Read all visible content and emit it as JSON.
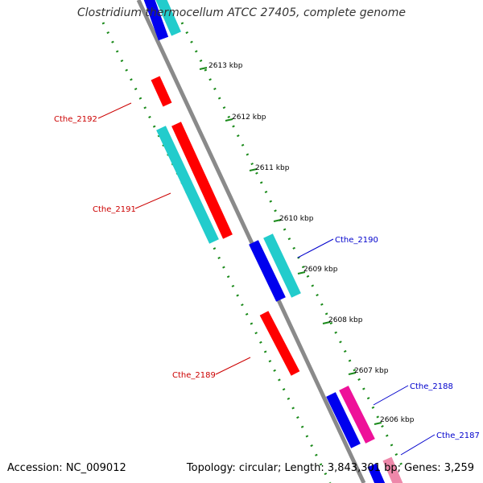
{
  "header": {
    "title": "Clostridium thermocellum ATCC 27405, complete genome"
  },
  "footer": {
    "accession": "Accession: NC_009012",
    "summary": "Topology: circular; Length: 3,843,301 bp; Genes: 3,259"
  },
  "ticks": [
    "2613 kbp",
    "2612 kbp",
    "2611 kbp",
    "2610 kbp",
    "2609 kbp",
    "2608 kbp",
    "2607 kbp",
    "2606 kbp"
  ],
  "gene_labels": [
    {
      "name": "Cthe_2192",
      "color": "#cc0000"
    },
    {
      "name": "Cthe_2191",
      "color": "#cc0000"
    },
    {
      "name": "Cthe_2190",
      "color": "#0000cc"
    },
    {
      "name": "Cthe_2189",
      "color": "#cc0000"
    },
    {
      "name": "Cthe_2188",
      "color": "#0000cc"
    },
    {
      "name": "Cthe_2187",
      "color": "#0000cc"
    }
  ],
  "colors": {
    "backbone": "#8a8a8a",
    "dotted_track": "#1a8a1a",
    "red_gene": "#ff0000",
    "cyan_gene": "#22cccc",
    "blue_gene": "#0000ee",
    "magenta_gene": "#ee1199",
    "label_red": "#cc0000",
    "label_blue": "#0000cc"
  }
}
